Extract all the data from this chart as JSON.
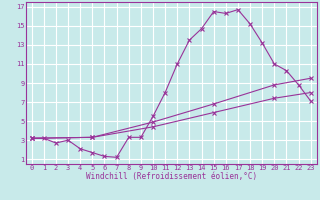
{
  "xlabel": "Windchill (Refroidissement éolien,°C)",
  "bg_color": "#c8eaea",
  "line_color": "#993399",
  "grid_color": "#ffffff",
  "xlim": [
    -0.5,
    23.5
  ],
  "ylim": [
    0.5,
    17.5
  ],
  "xticks": [
    0,
    1,
    2,
    3,
    4,
    5,
    6,
    7,
    8,
    9,
    10,
    11,
    12,
    13,
    14,
    15,
    16,
    17,
    18,
    19,
    20,
    21,
    22,
    23
  ],
  "yticks": [
    1,
    3,
    5,
    7,
    9,
    11,
    13,
    15,
    17
  ],
  "line1_x": [
    0,
    1,
    2,
    3,
    4,
    5,
    6,
    7,
    8,
    9,
    10,
    11,
    12,
    13,
    14,
    15,
    16,
    17,
    18,
    19,
    20,
    21,
    22,
    23
  ],
  "line1_y": [
    3.2,
    3.2,
    2.7,
    3.0,
    2.1,
    1.7,
    1.3,
    1.2,
    3.3,
    3.3,
    5.5,
    8.0,
    11.0,
    13.5,
    14.7,
    16.5,
    16.3,
    16.7,
    15.2,
    13.2,
    11.0,
    10.3,
    8.8,
    7.1
  ],
  "line2_x": [
    0,
    5,
    10,
    15,
    20,
    23
  ],
  "line2_y": [
    3.2,
    3.3,
    4.4,
    5.9,
    7.4,
    8.0
  ],
  "line3_x": [
    0,
    5,
    10,
    15,
    20,
    23
  ],
  "line3_y": [
    3.2,
    3.3,
    4.9,
    6.8,
    8.8,
    9.5
  ],
  "font_name": "monospace",
  "tick_fontsize": 5.0,
  "label_fontsize": 5.5
}
